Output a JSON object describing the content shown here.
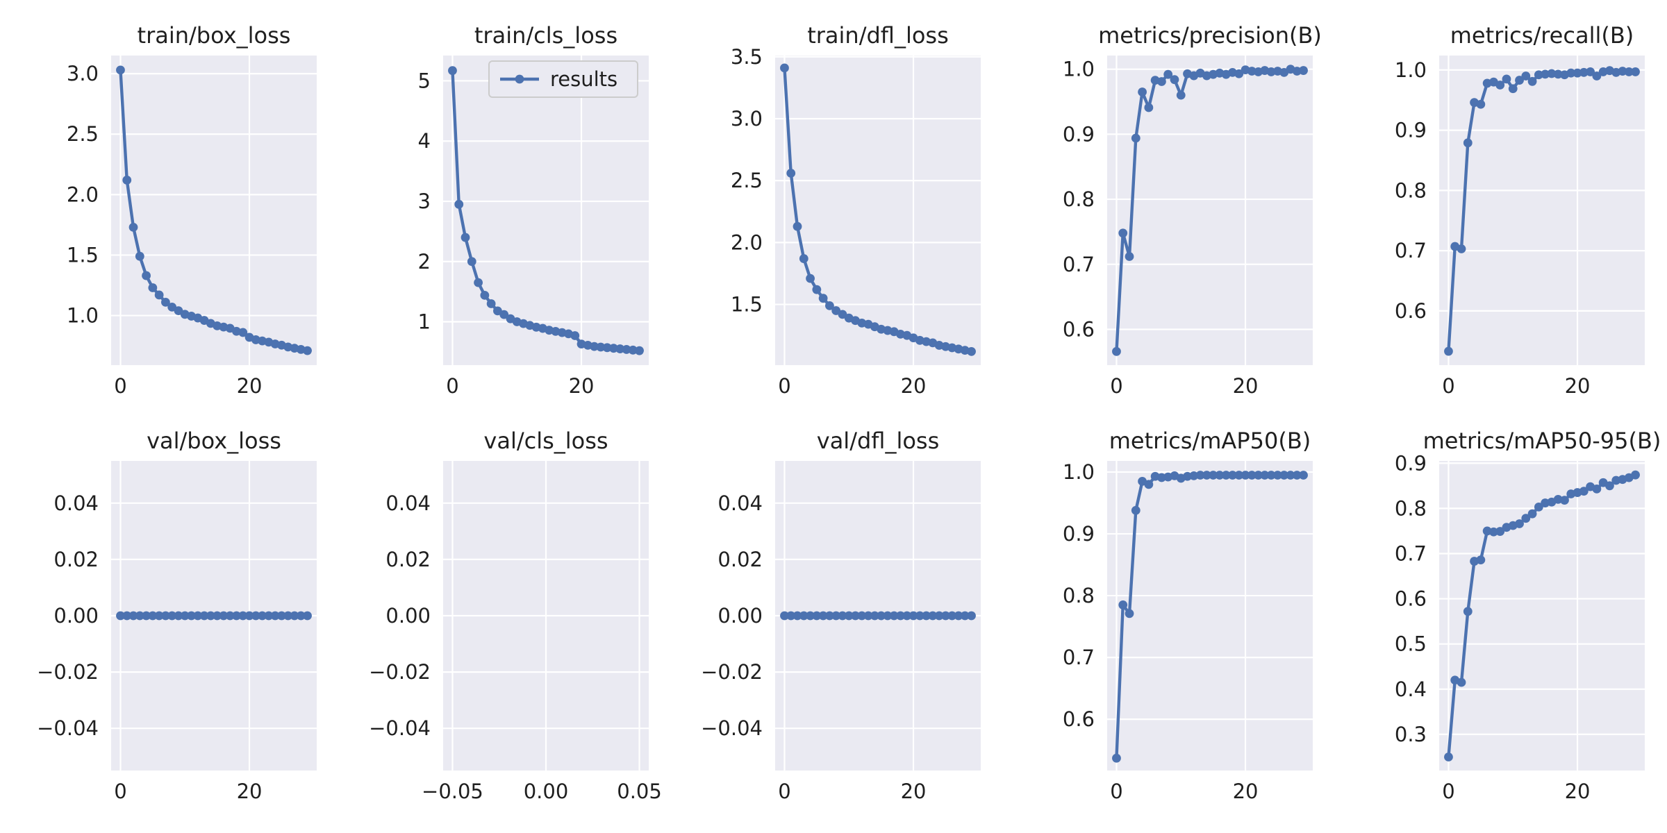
{
  "figure": {
    "line_color": "#4c72b0",
    "face_color": "#eaeaf2",
    "grid_color": "#ffffff",
    "legend_label": "results"
  },
  "chart_data": [
    {
      "type": "line",
      "title": "train/box_loss",
      "x": [
        0,
        1,
        2,
        3,
        4,
        5,
        6,
        7,
        8,
        9,
        10,
        11,
        12,
        13,
        14,
        15,
        16,
        17,
        18,
        19,
        20,
        21,
        22,
        23,
        24,
        25,
        26,
        27,
        28,
        29
      ],
      "series": [
        {
          "values": [
            3.03,
            2.12,
            1.73,
            1.49,
            1.33,
            1.23,
            1.17,
            1.11,
            1.07,
            1.04,
            1.01,
            0.995,
            0.98,
            0.96,
            0.935,
            0.915,
            0.905,
            0.895,
            0.87,
            0.86,
            0.82,
            0.8,
            0.79,
            0.78,
            0.765,
            0.755,
            0.74,
            0.73,
            0.72,
            0.71
          ]
        }
      ],
      "xlim": [
        -1.45,
        30.45
      ],
      "ylim": [
        0.59,
        3.15
      ],
      "xticks": [
        {
          "v": 0,
          "label": "0"
        },
        {
          "v": 20,
          "label": "20"
        }
      ],
      "yticks": [
        {
          "v": 1.0,
          "label": "1.0"
        },
        {
          "v": 1.5,
          "label": "1.5"
        },
        {
          "v": 2.0,
          "label": "2.0"
        },
        {
          "v": 2.5,
          "label": "2.5"
        },
        {
          "v": 3.0,
          "label": "3.0"
        }
      ],
      "legend": false
    },
    {
      "type": "line",
      "title": "train/cls_loss",
      "x": [
        0,
        1,
        2,
        3,
        4,
        5,
        6,
        7,
        8,
        9,
        10,
        11,
        12,
        13,
        14,
        15,
        16,
        17,
        18,
        19,
        20,
        21,
        22,
        23,
        24,
        25,
        26,
        27,
        28,
        29
      ],
      "series": [
        {
          "values": [
            5.17,
            2.95,
            2.4,
            2.0,
            1.65,
            1.44,
            1.3,
            1.18,
            1.12,
            1.05,
            1.0,
            0.97,
            0.94,
            0.91,
            0.89,
            0.86,
            0.84,
            0.82,
            0.8,
            0.77,
            0.63,
            0.61,
            0.59,
            0.58,
            0.57,
            0.56,
            0.55,
            0.54,
            0.53,
            0.52
          ]
        }
      ],
      "xlim": [
        -1.45,
        30.45
      ],
      "ylim": [
        0.28,
        5.42
      ],
      "xticks": [
        {
          "v": 0,
          "label": "0"
        },
        {
          "v": 20,
          "label": "20"
        }
      ],
      "yticks": [
        {
          "v": 1,
          "label": "1"
        },
        {
          "v": 2,
          "label": "2"
        },
        {
          "v": 3,
          "label": "3"
        },
        {
          "v": 4,
          "label": "4"
        },
        {
          "v": 5,
          "label": "5"
        }
      ],
      "legend": true
    },
    {
      "type": "line",
      "title": "train/dfl_loss",
      "x": [
        0,
        1,
        2,
        3,
        4,
        5,
        6,
        7,
        8,
        9,
        10,
        11,
        12,
        13,
        14,
        15,
        16,
        17,
        18,
        19,
        20,
        21,
        22,
        23,
        24,
        25,
        26,
        27,
        28,
        29
      ],
      "series": [
        {
          "values": [
            3.41,
            2.56,
            2.13,
            1.87,
            1.71,
            1.62,
            1.55,
            1.49,
            1.45,
            1.42,
            1.39,
            1.37,
            1.35,
            1.34,
            1.32,
            1.3,
            1.29,
            1.28,
            1.26,
            1.25,
            1.23,
            1.21,
            1.2,
            1.19,
            1.17,
            1.16,
            1.15,
            1.14,
            1.13,
            1.12
          ]
        }
      ],
      "xlim": [
        -1.45,
        30.45
      ],
      "ylim": [
        1.01,
        3.51
      ],
      "xticks": [
        {
          "v": 0,
          "label": "0"
        },
        {
          "v": 20,
          "label": "20"
        }
      ],
      "yticks": [
        {
          "v": 1.5,
          "label": "1.5"
        },
        {
          "v": 2.0,
          "label": "2.0"
        },
        {
          "v": 2.5,
          "label": "2.5"
        },
        {
          "v": 3.0,
          "label": "3.0"
        },
        {
          "v": 3.5,
          "label": "3.5"
        }
      ],
      "legend": false
    },
    {
      "type": "line",
      "title": "metrics/precision(B)",
      "x": [
        0,
        1,
        2,
        3,
        4,
        5,
        6,
        7,
        8,
        9,
        10,
        11,
        12,
        13,
        14,
        15,
        16,
        17,
        18,
        19,
        20,
        21,
        22,
        23,
        24,
        25,
        26,
        27,
        28,
        29
      ],
      "series": [
        {
          "values": [
            0.566,
            0.748,
            0.712,
            0.894,
            0.965,
            0.941,
            0.983,
            0.981,
            0.992,
            0.984,
            0.96,
            0.993,
            0.99,
            0.994,
            0.99,
            0.992,
            0.994,
            0.992,
            0.995,
            0.993,
            0.999,
            0.997,
            0.996,
            0.998,
            0.996,
            0.997,
            0.995,
            1.0,
            0.997,
            0.998
          ]
        }
      ],
      "xlim": [
        -1.45,
        30.45
      ],
      "ylim": [
        0.545,
        1.021
      ],
      "xticks": [
        {
          "v": 0,
          "label": "0"
        },
        {
          "v": 20,
          "label": "20"
        }
      ],
      "yticks": [
        {
          "v": 0.6,
          "label": "0.6"
        },
        {
          "v": 0.7,
          "label": "0.7"
        },
        {
          "v": 0.8,
          "label": "0.8"
        },
        {
          "v": 0.9,
          "label": "0.9"
        },
        {
          "v": 1.0,
          "label": "1.0"
        }
      ],
      "legend": false
    },
    {
      "type": "line",
      "title": "metrics/recall(B)",
      "x": [
        0,
        1,
        2,
        3,
        4,
        5,
        6,
        7,
        8,
        9,
        10,
        11,
        12,
        13,
        14,
        15,
        16,
        17,
        18,
        19,
        20,
        21,
        22,
        23,
        24,
        25,
        26,
        27,
        28,
        29
      ],
      "series": [
        {
          "values": [
            0.533,
            0.707,
            0.703,
            0.879,
            0.946,
            0.943,
            0.978,
            0.98,
            0.975,
            0.985,
            0.969,
            0.983,
            0.99,
            0.981,
            0.992,
            0.993,
            0.994,
            0.993,
            0.992,
            0.995,
            0.995,
            0.996,
            0.997,
            0.99,
            0.997,
            0.999,
            0.996,
            0.998,
            0.997,
            0.997
          ]
        }
      ],
      "xlim": [
        -1.45,
        30.45
      ],
      "ylim": [
        0.51,
        1.024
      ],
      "xticks": [
        {
          "v": 0,
          "label": "0"
        },
        {
          "v": 20,
          "label": "20"
        }
      ],
      "yticks": [
        {
          "v": 0.6,
          "label": "0.6"
        },
        {
          "v": 0.7,
          "label": "0.7"
        },
        {
          "v": 0.8,
          "label": "0.8"
        },
        {
          "v": 0.9,
          "label": "0.9"
        },
        {
          "v": 1.0,
          "label": "1.0"
        }
      ],
      "legend": false
    },
    {
      "type": "line",
      "title": "val/box_loss",
      "x": [
        0,
        1,
        2,
        3,
        4,
        5,
        6,
        7,
        8,
        9,
        10,
        11,
        12,
        13,
        14,
        15,
        16,
        17,
        18,
        19,
        20,
        21,
        22,
        23,
        24,
        25,
        26,
        27,
        28,
        29
      ],
      "series": [
        {
          "values": [
            0,
            0,
            0,
            0,
            0,
            0,
            0,
            0,
            0,
            0,
            0,
            0,
            0,
            0,
            0,
            0,
            0,
            0,
            0,
            0,
            0,
            0,
            0,
            0,
            0,
            0,
            0,
            0,
            0,
            0
          ]
        }
      ],
      "xlim": [
        -1.45,
        30.45
      ],
      "ylim": [
        -0.055,
        0.055
      ],
      "xticks": [
        {
          "v": 0,
          "label": "0"
        },
        {
          "v": 20,
          "label": "20"
        }
      ],
      "yticks": [
        {
          "v": -0.04,
          "label": "−0.04"
        },
        {
          "v": -0.02,
          "label": "−0.02"
        },
        {
          "v": 0.0,
          "label": "0.00"
        },
        {
          "v": 0.02,
          "label": "0.02"
        },
        {
          "v": 0.04,
          "label": "0.04"
        }
      ],
      "legend": false
    },
    {
      "type": "line",
      "title": "val/cls_loss",
      "x": [],
      "series": [
        {
          "values": []
        }
      ],
      "xlim": [
        -0.055,
        0.055
      ],
      "ylim": [
        -0.055,
        0.055
      ],
      "xticks": [
        {
          "v": -0.05,
          "label": "−0.05"
        },
        {
          "v": 0.0,
          "label": "0.00"
        },
        {
          "v": 0.05,
          "label": "0.05"
        }
      ],
      "yticks": [
        {
          "v": -0.04,
          "label": "−0.04"
        },
        {
          "v": -0.02,
          "label": "−0.02"
        },
        {
          "v": 0.0,
          "label": "0.00"
        },
        {
          "v": 0.02,
          "label": "0.02"
        },
        {
          "v": 0.04,
          "label": "0.04"
        }
      ],
      "legend": false
    },
    {
      "type": "line",
      "title": "val/dfl_loss",
      "x": [
        0,
        1,
        2,
        3,
        4,
        5,
        6,
        7,
        8,
        9,
        10,
        11,
        12,
        13,
        14,
        15,
        16,
        17,
        18,
        19,
        20,
        21,
        22,
        23,
        24,
        25,
        26,
        27,
        28,
        29
      ],
      "series": [
        {
          "values": [
            0,
            0,
            0,
            0,
            0,
            0,
            0,
            0,
            0,
            0,
            0,
            0,
            0,
            0,
            0,
            0,
            0,
            0,
            0,
            0,
            0,
            0,
            0,
            0,
            0,
            0,
            0,
            0,
            0,
            0
          ]
        }
      ],
      "xlim": [
        -1.45,
        30.45
      ],
      "ylim": [
        -0.055,
        0.055
      ],
      "xticks": [
        {
          "v": 0,
          "label": "0"
        },
        {
          "v": 20,
          "label": "20"
        }
      ],
      "yticks": [
        {
          "v": -0.04,
          "label": "−0.04"
        },
        {
          "v": -0.02,
          "label": "−0.02"
        },
        {
          "v": 0.0,
          "label": "0.00"
        },
        {
          "v": 0.02,
          "label": "0.02"
        },
        {
          "v": 0.04,
          "label": "0.04"
        }
      ],
      "legend": false
    },
    {
      "type": "line",
      "title": "metrics/mAP50(B)",
      "x": [
        0,
        1,
        2,
        3,
        4,
        5,
        6,
        7,
        8,
        9,
        10,
        11,
        12,
        13,
        14,
        15,
        16,
        17,
        18,
        19,
        20,
        21,
        22,
        23,
        24,
        25,
        26,
        27,
        28,
        29
      ],
      "series": [
        {
          "values": [
            0.537,
            0.785,
            0.771,
            0.938,
            0.985,
            0.98,
            0.993,
            0.991,
            0.992,
            0.994,
            0.99,
            0.993,
            0.994,
            0.995,
            0.995,
            0.995,
            0.995,
            0.995,
            0.995,
            0.995,
            0.995,
            0.995,
            0.995,
            0.995,
            0.995,
            0.995,
            0.995,
            0.995,
            0.995,
            0.995
          ]
        }
      ],
      "xlim": [
        -1.45,
        30.45
      ],
      "ylim": [
        0.517,
        1.018
      ],
      "xticks": [
        {
          "v": 0,
          "label": "0"
        },
        {
          "v": 20,
          "label": "20"
        }
      ],
      "yticks": [
        {
          "v": 0.6,
          "label": "0.6"
        },
        {
          "v": 0.7,
          "label": "0.7"
        },
        {
          "v": 0.8,
          "label": "0.8"
        },
        {
          "v": 0.9,
          "label": "0.9"
        },
        {
          "v": 1.0,
          "label": "1.0"
        }
      ],
      "legend": false
    },
    {
      "type": "line",
      "title": "metrics/mAP50-95(B)",
      "x": [
        0,
        1,
        2,
        3,
        4,
        5,
        6,
        7,
        8,
        9,
        10,
        11,
        12,
        13,
        14,
        15,
        16,
        17,
        18,
        19,
        20,
        21,
        22,
        23,
        24,
        25,
        26,
        27,
        28,
        29
      ],
      "series": [
        {
          "values": [
            0.25,
            0.42,
            0.415,
            0.572,
            0.683,
            0.686,
            0.75,
            0.748,
            0.749,
            0.758,
            0.762,
            0.766,
            0.778,
            0.788,
            0.803,
            0.812,
            0.814,
            0.82,
            0.818,
            0.832,
            0.835,
            0.838,
            0.848,
            0.843,
            0.857,
            0.85,
            0.862,
            0.864,
            0.868,
            0.874
          ]
        }
      ],
      "xlim": [
        -1.45,
        30.45
      ],
      "ylim": [
        0.22,
        0.905
      ],
      "xticks": [
        {
          "v": 0,
          "label": "0"
        },
        {
          "v": 20,
          "label": "20"
        }
      ],
      "yticks": [
        {
          "v": 0.3,
          "label": "0.3"
        },
        {
          "v": 0.4,
          "label": "0.4"
        },
        {
          "v": 0.5,
          "label": "0.5"
        },
        {
          "v": 0.6,
          "label": "0.6"
        },
        {
          "v": 0.7,
          "label": "0.7"
        },
        {
          "v": 0.8,
          "label": "0.8"
        },
        {
          "v": 0.9,
          "label": "0.9"
        }
      ],
      "legend": false
    }
  ]
}
